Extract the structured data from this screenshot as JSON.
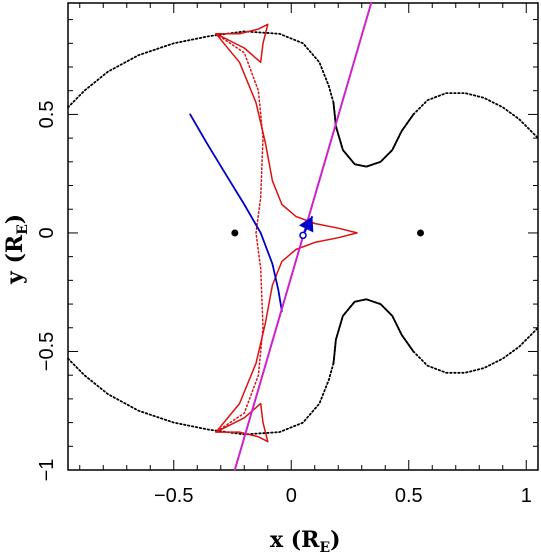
{
  "chart_data": {
    "type": "line",
    "title": "",
    "xlabel": {
      "prefix": "x (R",
      "sub": "E",
      "suffix": ")"
    },
    "ylabel": {
      "prefix": "y (R",
      "sub": "E",
      "suffix": ")"
    },
    "xlim": [
      -0.95,
      1.05
    ],
    "ylim": [
      -1.0,
      0.97
    ],
    "x_ticks": [
      {
        "value": -0.5,
        "label": "−0.5"
      },
      {
        "value": 0,
        "label": "0"
      },
      {
        "value": 0.5,
        "label": "0.5"
      },
      {
        "value": 1,
        "label": "1"
      }
    ],
    "y_ticks": [
      {
        "value": -1,
        "label": "−1"
      },
      {
        "value": -0.5,
        "label": "−0.5"
      },
      {
        "value": 0,
        "label": "0"
      },
      {
        "value": 0.5,
        "label": "0.5"
      }
    ],
    "grid": false,
    "colors": {
      "critical_curve": "#000000",
      "caustic": "#dd1111",
      "trajectory": "#cc22cc",
      "source_track": "#0000cc",
      "lens": "#000000"
    },
    "lenses": [
      {
        "x": -0.24,
        "y": 0.0
      },
      {
        "x": 0.55,
        "y": 0.0
      }
    ],
    "source_position": {
      "x": 0.05,
      "y": -0.01
    },
    "source_arrow": {
      "x": 0.09,
      "y": 0.07
    },
    "trajectory_line": {
      "x": [
        -0.24,
        0.34
      ],
      "y": [
        -1.0,
        0.97
      ]
    },
    "source_track": {
      "x": [
        -0.43,
        -0.36,
        -0.28,
        -0.2,
        -0.13,
        -0.08,
        -0.055,
        -0.04
      ],
      "y": [
        0.5,
        0.38,
        0.25,
        0.12,
        0.0,
        -0.13,
        -0.24,
        -0.33
      ]
    },
    "critical_curve": {
      "upper_left": {
        "x": [
          -0.95,
          -0.88,
          -0.78,
          -0.65,
          -0.5,
          -0.35,
          -0.2,
          -0.05,
          0.05,
          0.12,
          0.16,
          0.18
        ],
        "y": [
          0.53,
          0.6,
          0.68,
          0.75,
          0.8,
          0.83,
          0.85,
          0.84,
          0.8,
          0.72,
          0.62,
          0.55
        ]
      },
      "upper_right_lobe": {
        "x": [
          0.18,
          0.19,
          0.22,
          0.27,
          0.32,
          0.38,
          0.43,
          0.47,
          0.52,
          0.58,
          0.66,
          0.74,
          0.82,
          0.9,
          0.97,
          1.02,
          1.05
        ],
        "y": [
          0.55,
          0.45,
          0.35,
          0.29,
          0.28,
          0.3,
          0.35,
          0.43,
          0.5,
          0.56,
          0.59,
          0.59,
          0.57,
          0.53,
          0.48,
          0.43,
          0.4
        ]
      },
      "lower_left": {
        "x": [
          -0.95,
          -0.88,
          -0.78,
          -0.65,
          -0.5,
          -0.35,
          -0.2,
          -0.05,
          0.05,
          0.12,
          0.16,
          0.18
        ],
        "y": [
          -0.53,
          -0.6,
          -0.68,
          -0.75,
          -0.8,
          -0.83,
          -0.85,
          -0.84,
          -0.8,
          -0.72,
          -0.62,
          -0.55
        ]
      },
      "lower_right_lobe": {
        "x": [
          0.18,
          0.19,
          0.22,
          0.27,
          0.32,
          0.38,
          0.43,
          0.47,
          0.52,
          0.58,
          0.66,
          0.74,
          0.82,
          0.9,
          0.97,
          1.02,
          1.05
        ],
        "y": [
          -0.55,
          -0.45,
          -0.35,
          -0.29,
          -0.28,
          -0.3,
          -0.35,
          -0.43,
          -0.5,
          -0.56,
          -0.59,
          -0.59,
          -0.57,
          -0.53,
          -0.48,
          -0.43,
          -0.4
        ]
      }
    },
    "caustic": {
      "central": {
        "x": [
          -0.32,
          -0.22,
          -0.15,
          -0.11,
          -0.08,
          -0.04,
          0.02,
          0.1,
          0.2,
          0.28,
          0.2,
          0.1,
          0.02,
          -0.04,
          -0.08,
          -0.11,
          -0.15,
          -0.22,
          -0.32
        ],
        "y": [
          0.84,
          0.72,
          0.55,
          0.38,
          0.22,
          0.12,
          0.07,
          0.04,
          0.02,
          0.0,
          -0.02,
          -0.04,
          -0.07,
          -0.12,
          -0.22,
          -0.38,
          -0.55,
          -0.72,
          -0.84
        ]
      },
      "central_inner": {
        "x": [
          -0.32,
          -0.2,
          -0.14,
          -0.12,
          -0.13,
          -0.15,
          -0.13,
          -0.12,
          -0.14,
          -0.2,
          -0.32
        ],
        "y": [
          0.84,
          0.76,
          0.6,
          0.4,
          0.15,
          0.0,
          -0.15,
          -0.4,
          -0.6,
          -0.76,
          -0.84
        ]
      },
      "upper_tip": {
        "x": [
          -0.32,
          -0.22,
          -0.14,
          -0.1,
          -0.12,
          -0.13,
          -0.2,
          -0.32
        ],
        "y": [
          0.84,
          0.84,
          0.86,
          0.88,
          0.8,
          0.72,
          0.78,
          0.84
        ]
      },
      "lower_tip": {
        "x": [
          -0.32,
          -0.22,
          -0.14,
          -0.1,
          -0.12,
          -0.13,
          -0.2,
          -0.32
        ],
        "y": [
          -0.84,
          -0.84,
          -0.86,
          -0.88,
          -0.8,
          -0.72,
          -0.78,
          -0.84
        ]
      }
    }
  }
}
